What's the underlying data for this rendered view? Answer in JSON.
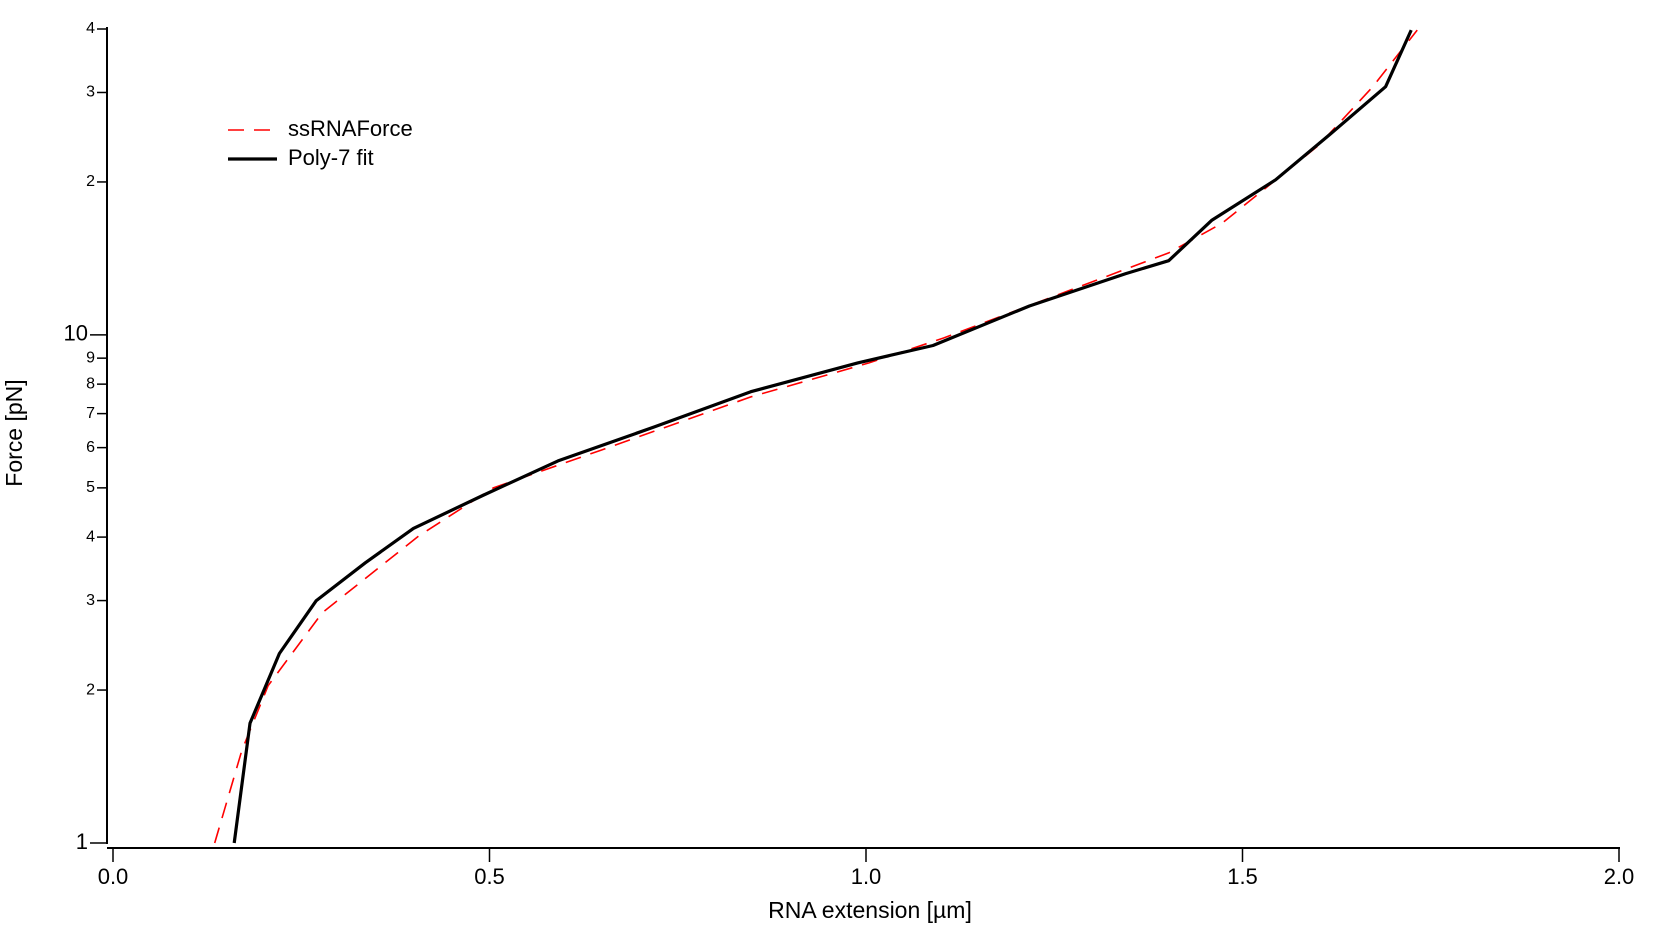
{
  "chart_data": {
    "type": "line",
    "x_label": "RNA extension [µm]",
    "y_label": "Force [pN]",
    "xlim": [
      0,
      2
    ],
    "xticks": [
      {
        "value": 0,
        "label": "0.0"
      },
      {
        "value": 0.5,
        "label": "0.5"
      },
      {
        "value": 1,
        "label": "1.0"
      },
      {
        "value": 1.5,
        "label": "1.5"
      },
      {
        "value": 2,
        "label": "2.0"
      }
    ],
    "ylim": [
      1,
      40
    ],
    "y_log_scale": true,
    "yticks": [
      1,
      2,
      3,
      4,
      5,
      6,
      7,
      8,
      9,
      10,
      {
        "value": 20,
        "label": "2"
      },
      {
        "value": 30,
        "label": "3"
      },
      {
        "value": 40,
        "label": "4"
      }
    ],
    "legend_position": "upper left",
    "series": [
      {
        "name": "ssRNAForce",
        "color": "#ff0000",
        "dashed": true,
        "x": [
          0.135,
          0.171,
          0.206,
          0.278,
          0.406,
          0.505,
          0.648,
          0.847,
          1.004,
          1.103,
          1.402,
          1.473,
          1.601,
          1.673,
          1.732
        ],
        "values": [
          1.0,
          1.52,
          2.04,
          2.84,
          4.02,
          5.0,
          5.93,
          7.55,
          8.81,
          9.86,
          14.5,
          16.6,
          23.6,
          30.8,
          39.8
        ]
      },
      {
        "name": "Poly-7 fit",
        "color": "#000000",
        "dashed": false,
        "x": [
          0.161,
          0.182,
          0.221,
          0.27,
          0.335,
          0.399,
          0.491,
          0.591,
          0.719,
          0.847,
          0.989,
          1.089,
          1.217,
          1.345,
          1.402,
          1.459,
          1.544,
          1.616,
          1.69,
          1.724
        ],
        "values": [
          1.0,
          1.72,
          2.36,
          3.0,
          3.56,
          4.16,
          4.83,
          5.65,
          6.59,
          7.73,
          8.81,
          9.53,
          11.4,
          13.2,
          14.0,
          16.8,
          20.2,
          24.8,
          30.8,
          39.8
        ]
      }
    ]
  }
}
